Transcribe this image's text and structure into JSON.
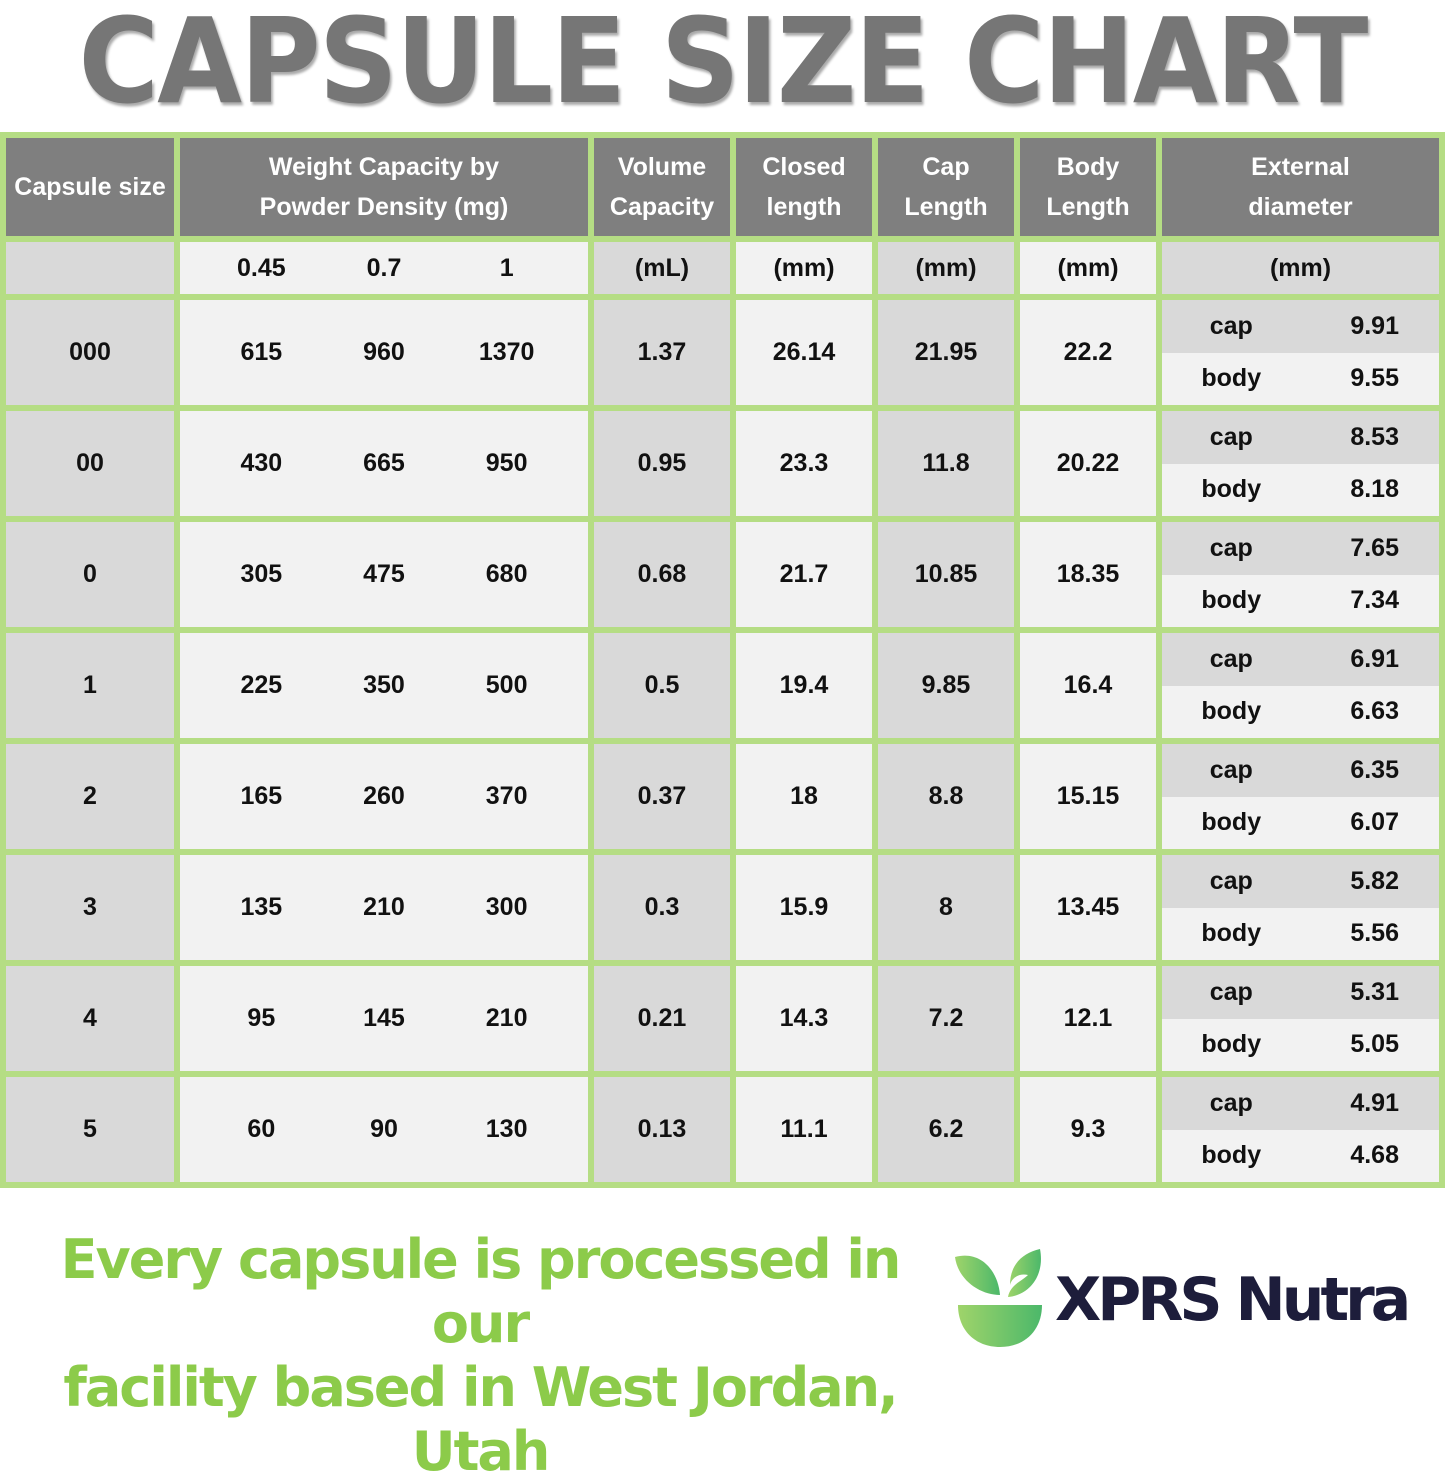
{
  "title": "CAPSULE SIZE CHART",
  "headers": [
    "Capsule size",
    "Weight Capacity by Powder Density (mg)",
    "Volume Capacity",
    "Closed length",
    "Cap Length",
    "Body Length",
    "External diameter"
  ],
  "subheaders": {
    "densities": [
      "0.45",
      "0.7",
      "1"
    ],
    "volume": "(mL)",
    "closed": "(mm)",
    "cap": "(mm)",
    "body": "(mm)",
    "diameter": "(mm)"
  },
  "diameter_labels": {
    "cap": "cap",
    "body": "body"
  },
  "rows": [
    {
      "size": "000",
      "w": [
        "615",
        "960",
        "1370"
      ],
      "vol": "1.37",
      "closed": "26.14",
      "cap": "21.95",
      "body": "22.2",
      "d_cap": "9.91",
      "d_body": "9.55"
    },
    {
      "size": "00",
      "w": [
        "430",
        "665",
        "950"
      ],
      "vol": "0.95",
      "closed": "23.3",
      "cap": "11.8",
      "body": "20.22",
      "d_cap": "8.53",
      "d_body": "8.18"
    },
    {
      "size": "0",
      "w": [
        "305",
        "475",
        "680"
      ],
      "vol": "0.68",
      "closed": "21.7",
      "cap": "10.85",
      "body": "18.35",
      "d_cap": "7.65",
      "d_body": "7.34"
    },
    {
      "size": "1",
      "w": [
        "225",
        "350",
        "500"
      ],
      "vol": "0.5",
      "closed": "19.4",
      "cap": "9.85",
      "body": "16.4",
      "d_cap": "6.91",
      "d_body": "6.63"
    },
    {
      "size": "2",
      "w": [
        "165",
        "260",
        "370"
      ],
      "vol": "0.37",
      "closed": "18",
      "cap": "8.8",
      "body": "15.15",
      "d_cap": "6.35",
      "d_body": "6.07"
    },
    {
      "size": "3",
      "w": [
        "135",
        "210",
        "300"
      ],
      "vol": "0.3",
      "closed": "15.9",
      "cap": "8",
      "body": "13.45",
      "d_cap": "5.82",
      "d_body": "5.56"
    },
    {
      "size": "4",
      "w": [
        "95",
        "145",
        "210"
      ],
      "vol": "0.21",
      "closed": "14.3",
      "cap": "7.2",
      "body": "12.1",
      "d_cap": "5.31",
      "d_body": "5.05"
    },
    {
      "size": "5",
      "w": [
        "60",
        "90",
        "130"
      ],
      "vol": "0.13",
      "closed": "11.1",
      "cap": "6.2",
      "body": "9.3",
      "d_cap": "4.91",
      "d_body": "4.68"
    }
  ],
  "footer": {
    "line1": "Every capsule is processed in our",
    "line2": "facility based in West Jordan, Utah"
  },
  "brand": "XPRS Nutra",
  "colors": {
    "header": "#7f7f7f",
    "grid": "#b5dd84",
    "dark_cell": "#d9d9d9",
    "light_cell": "#f2f2f2",
    "footer_text": "#8ccb4a",
    "brand": "#1d1d3b"
  }
}
